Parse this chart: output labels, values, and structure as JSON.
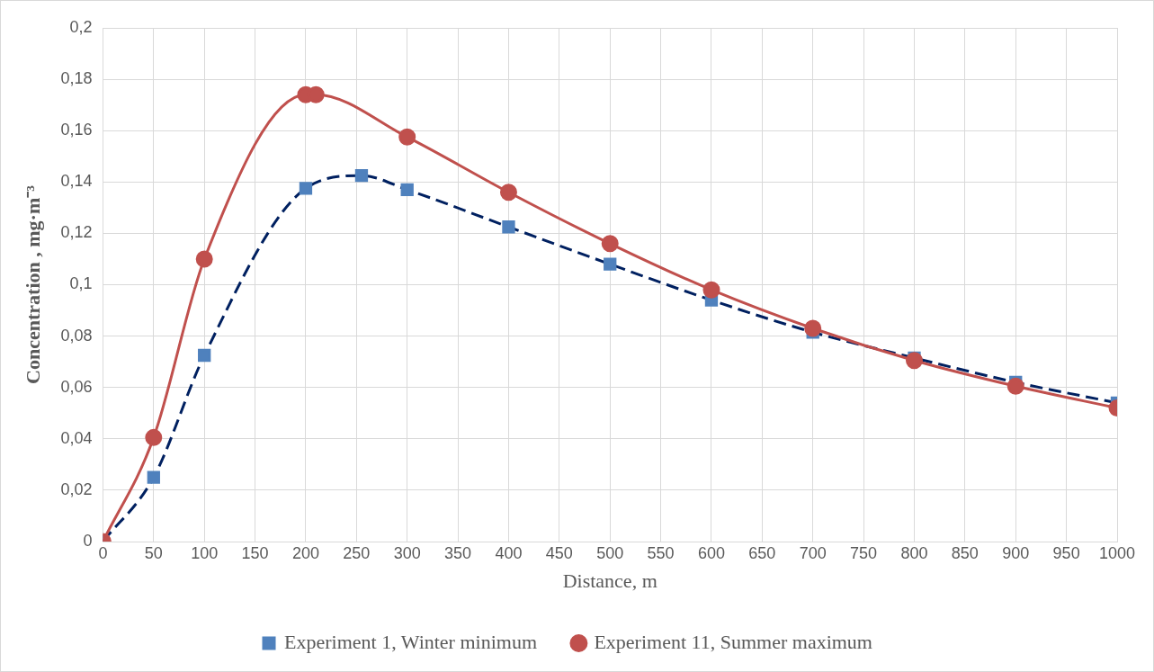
{
  "chart_data": {
    "type": "line",
    "xlabel": "Distance, m",
    "ylabel": "Concentration , mg·m⁻³",
    "xlim": [
      0,
      1000
    ],
    "xticks": [
      0,
      50,
      100,
      150,
      200,
      250,
      300,
      350,
      400,
      450,
      500,
      550,
      600,
      650,
      700,
      750,
      800,
      850,
      900,
      950,
      1000
    ],
    "ylim": [
      0,
      0.2
    ],
    "yticks": [
      0,
      {
        "value": 0.02,
        "label": "0,02"
      },
      {
        "value": 0.04,
        "label": "0,04"
      },
      {
        "value": 0.06,
        "label": "0,06"
      },
      {
        "value": 0.08,
        "label": "0,08"
      },
      {
        "value": 0.1,
        "label": "0,1"
      },
      {
        "value": 0.12,
        "label": "0,12"
      },
      {
        "value": 0.14,
        "label": "0,14"
      },
      {
        "value": 0.16,
        "label": "0,16"
      },
      {
        "value": 0.18,
        "label": "0,18"
      },
      {
        "value": 0.2,
        "label": "0,2"
      }
    ],
    "grid": true,
    "legend": "bottom",
    "series": [
      {
        "name": "Experiment 1, Winter minimum",
        "color": "#002060",
        "colors": [
          "#4f81bd",
          "#4f81bd",
          "#4f81bd",
          "#4f81bd",
          "#4f81bd",
          "#4f81bd",
          "#4f81bd",
          "#4f81bd",
          "#4f81bd",
          "#4f81bd",
          "#4f81bd",
          "#4f81bd",
          "#4f81bd"
        ],
        "marker": "square",
        "line_style": "dashed",
        "x": [
          0,
          50,
          100,
          200,
          255,
          300,
          400,
          500,
          600,
          700,
          800,
          900,
          1000
        ],
        "values": [
          0,
          0.025,
          0.0725,
          0.1375,
          0.1425,
          0.137,
          0.1225,
          0.108,
          0.094,
          0.0815,
          0.0715,
          0.062,
          0.054
        ]
      },
      {
        "name": "Experiment 11, Summer maximum",
        "color": "#c0504d",
        "colors": [
          "#c0504d",
          "#c0504d",
          "#c0504d",
          "#c0504d",
          "#c0504d",
          "#c0504d",
          "#c0504d",
          "#c0504d",
          "#c0504d",
          "#c0504d",
          "#c0504d",
          "#c0504d",
          "#c0504d"
        ],
        "marker": "circle",
        "line_style": "solid",
        "x": [
          0,
          50,
          100,
          200,
          210,
          300,
          400,
          500,
          600,
          700,
          800,
          900,
          1000
        ],
        "values": [
          0,
          0.0405,
          0.11,
          0.174,
          0.174,
          0.1575,
          0.136,
          0.116,
          0.098,
          0.083,
          0.0705,
          0.0605,
          0.052
        ]
      }
    ]
  }
}
